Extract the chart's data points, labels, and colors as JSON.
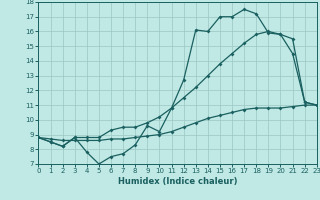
{
  "xlabel": "Humidex (Indice chaleur)",
  "bg_color": "#c0e8e4",
  "grid_color": "#a0ccc8",
  "line_color": "#1a6060",
  "x_min": 0,
  "x_max": 23,
  "y_min": 7,
  "y_max": 18,
  "curve1_x": [
    0,
    1,
    2,
    3,
    4,
    5,
    6,
    7,
    8,
    9,
    10,
    11,
    12,
    13,
    14,
    15,
    16,
    17,
    18,
    19,
    20,
    21,
    22,
    23
  ],
  "curve1_y": [
    8.8,
    8.5,
    8.2,
    8.8,
    7.8,
    7.0,
    7.5,
    7.7,
    8.3,
    9.6,
    9.2,
    10.8,
    12.7,
    16.1,
    16.0,
    17.0,
    17.0,
    17.5,
    17.2,
    15.9,
    15.8,
    14.5,
    11.2,
    11.0
  ],
  "curve2_x": [
    0,
    1,
    2,
    3,
    4,
    5,
    6,
    7,
    8,
    9,
    10,
    11,
    12,
    13,
    14,
    15,
    16,
    17,
    18,
    19,
    20,
    21,
    22,
    23
  ],
  "curve2_y": [
    8.8,
    8.5,
    8.2,
    8.8,
    8.8,
    8.8,
    9.3,
    9.5,
    9.5,
    9.8,
    10.2,
    10.8,
    11.5,
    12.2,
    13.0,
    13.8,
    14.5,
    15.2,
    15.8,
    16.0,
    15.8,
    15.5,
    11.2,
    11.0
  ],
  "curve3_x": [
    0,
    1,
    2,
    3,
    4,
    5,
    6,
    7,
    8,
    9,
    10,
    11,
    12,
    13,
    14,
    15,
    16,
    17,
    18,
    19,
    20,
    21,
    22,
    23
  ],
  "curve3_y": [
    8.8,
    8.7,
    8.6,
    8.6,
    8.6,
    8.6,
    8.7,
    8.7,
    8.8,
    8.9,
    9.0,
    9.2,
    9.5,
    9.8,
    10.1,
    10.3,
    10.5,
    10.7,
    10.8,
    10.8,
    10.8,
    10.9,
    11.0,
    11.0
  ]
}
